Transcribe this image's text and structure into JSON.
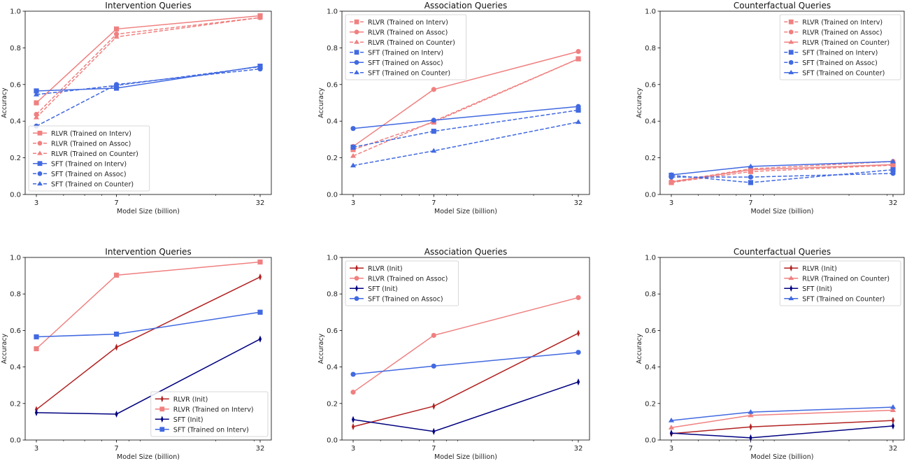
{
  "colors": {
    "rlvr_trained": "#f08080",
    "sft_trained": "#4169e1",
    "rlvr_init": "#b22222",
    "sft_init": "#000080"
  },
  "chart_data": [
    {
      "type": "line",
      "title": "Intervention Queries",
      "xlabel": "Model Size (billion)",
      "ylabel": "Accuracy",
      "x": [
        3,
        7,
        32
      ],
      "x_scale": "log",
      "ylim": [
        0,
        1
      ],
      "yticks": [
        "0.0",
        "0.2",
        "0.4",
        "0.6",
        "0.8",
        "1.0"
      ],
      "grid": false,
      "legend": "lower-left",
      "series": [
        {
          "name": "RLVR (Trained on Interv)",
          "values": [
            0.5,
            0.903,
            0.975
          ],
          "color": "#f08080",
          "marker": "square",
          "linestyle": "solid"
        },
        {
          "name": "RLVR (Trained on Assoc)",
          "values": [
            0.437,
            0.875,
            0.965
          ],
          "color": "#f08080",
          "marker": "circle",
          "linestyle": "dashed"
        },
        {
          "name": "RLVR (Trained on Counter)",
          "values": [
            0.42,
            0.86,
            0.965
          ],
          "color": "#f08080",
          "marker": "triangle",
          "linestyle": "dashed"
        },
        {
          "name": "SFT (Trained on Interv)",
          "values": [
            0.565,
            0.58,
            0.7
          ],
          "color": "#4169e1",
          "marker": "square",
          "linestyle": "solid"
        },
        {
          "name": "SFT (Trained on Assoc)",
          "values": [
            0.373,
            0.6,
            0.685
          ],
          "color": "#4169e1",
          "marker": "circle",
          "linestyle": "dashed"
        },
        {
          "name": "SFT (Trained on Counter)",
          "values": [
            0.545,
            0.595,
            0.697
          ],
          "color": "#4169e1",
          "marker": "triangle",
          "linestyle": "dashed"
        }
      ]
    },
    {
      "type": "line",
      "title": "Association Queries",
      "xlabel": "Model Size (billion)",
      "ylabel": "Accuracy",
      "x": [
        3,
        7,
        32
      ],
      "x_scale": "log",
      "ylim": [
        0,
        1
      ],
      "yticks": [
        "0.0",
        "0.2",
        "0.4",
        "0.6",
        "0.8",
        "1.0"
      ],
      "grid": false,
      "legend": "upper-left",
      "series": [
        {
          "name": "RLVR (Trained on Interv)",
          "values": [
            0.245,
            0.395,
            0.74
          ],
          "color": "#f08080",
          "marker": "square",
          "linestyle": "dashed"
        },
        {
          "name": "RLVR (Trained on Assoc)",
          "values": [
            0.262,
            0.573,
            0.78
          ],
          "color": "#f08080",
          "marker": "circle",
          "linestyle": "solid"
        },
        {
          "name": "RLVR (Trained on Counter)",
          "values": [
            0.21,
            0.4,
            0.74
          ],
          "color": "#f08080",
          "marker": "triangle",
          "linestyle": "dashed"
        },
        {
          "name": "SFT (Trained on Interv)",
          "values": [
            0.258,
            0.345,
            0.46
          ],
          "color": "#4169e1",
          "marker": "square",
          "linestyle": "dashed"
        },
        {
          "name": "SFT (Trained on Assoc)",
          "values": [
            0.36,
            0.405,
            0.48
          ],
          "color": "#4169e1",
          "marker": "circle",
          "linestyle": "solid"
        },
        {
          "name": "SFT (Trained on Counter)",
          "values": [
            0.158,
            0.238,
            0.395
          ],
          "color": "#4169e1",
          "marker": "triangle",
          "linestyle": "dashed"
        }
      ]
    },
    {
      "type": "line",
      "title": "Counterfactual Queries",
      "xlabel": "Model Size (billion)",
      "ylabel": "Accuracy",
      "x": [
        3,
        7,
        32
      ],
      "x_scale": "log",
      "ylim": [
        0,
        1
      ],
      "yticks": [
        "0.0",
        "0.2",
        "0.4",
        "0.6",
        "0.8",
        "1.0"
      ],
      "grid": false,
      "legend": "upper-right",
      "series": [
        {
          "name": "RLVR (Trained on Interv)",
          "values": [
            0.065,
            0.125,
            0.16
          ],
          "color": "#f08080",
          "marker": "square",
          "linestyle": "dashed"
        },
        {
          "name": "RLVR (Trained on Assoc)",
          "values": [
            0.07,
            0.14,
            0.18
          ],
          "color": "#f08080",
          "marker": "circle",
          "linestyle": "dashed"
        },
        {
          "name": "RLVR (Trained on Counter)",
          "values": [
            0.068,
            0.135,
            0.163
          ],
          "color": "#f08080",
          "marker": "triangle",
          "linestyle": "solid"
        },
        {
          "name": "SFT (Trained on Interv)",
          "values": [
            0.105,
            0.065,
            0.135
          ],
          "color": "#4169e1",
          "marker": "square",
          "linestyle": "dashed"
        },
        {
          "name": "SFT (Trained on Assoc)",
          "values": [
            0.095,
            0.095,
            0.115
          ],
          "color": "#4169e1",
          "marker": "circle",
          "linestyle": "dashed"
        },
        {
          "name": "SFT (Trained on Counter)",
          "values": [
            0.107,
            0.153,
            0.18
          ],
          "color": "#4169e1",
          "marker": "triangle",
          "linestyle": "solid"
        }
      ]
    },
    {
      "type": "line",
      "title": "Intervention Queries",
      "xlabel": "Model Size (billion)",
      "ylabel": "Accuracy",
      "x": [
        3,
        7,
        32
      ],
      "x_scale": "log",
      "ylim": [
        0,
        1
      ],
      "yticks": [
        "0.0",
        "0.2",
        "0.4",
        "0.6",
        "0.8",
        "1.0"
      ],
      "grid": false,
      "legend": "lower-right",
      "series": [
        {
          "name": "RLVR (Init)",
          "values": [
            0.167,
            0.508,
            0.893
          ],
          "color": "#b22222",
          "marker": "diamond",
          "linestyle": "solid"
        },
        {
          "name": "RLVR (Trained on Interv)",
          "values": [
            0.5,
            0.903,
            0.975
          ],
          "color": "#f08080",
          "marker": "square",
          "linestyle": "solid"
        },
        {
          "name": "SFT (Init)",
          "values": [
            0.15,
            0.142,
            0.553
          ],
          "color": "#000080",
          "marker": "diamond",
          "linestyle": "solid"
        },
        {
          "name": "SFT (Trained on Interv)",
          "values": [
            0.565,
            0.58,
            0.7
          ],
          "color": "#4169e1",
          "marker": "square",
          "linestyle": "solid"
        }
      ]
    },
    {
      "type": "line",
      "title": "Association Queries",
      "xlabel": "Model Size (billion)",
      "ylabel": "Accuracy",
      "x": [
        3,
        7,
        32
      ],
      "x_scale": "log",
      "ylim": [
        0,
        1
      ],
      "yticks": [
        "0.0",
        "0.2",
        "0.4",
        "0.6",
        "0.8",
        "1.0"
      ],
      "grid": false,
      "legend": "upper-left",
      "series": [
        {
          "name": "RLVR (Init)",
          "values": [
            0.073,
            0.185,
            0.585
          ],
          "color": "#b22222",
          "marker": "diamond",
          "linestyle": "solid"
        },
        {
          "name": "RLVR (Trained on Assoc)",
          "values": [
            0.262,
            0.573,
            0.78
          ],
          "color": "#f08080",
          "marker": "circle",
          "linestyle": "solid"
        },
        {
          "name": "SFT (Init)",
          "values": [
            0.112,
            0.047,
            0.318
          ],
          "color": "#000080",
          "marker": "diamond",
          "linestyle": "solid"
        },
        {
          "name": "SFT (Trained on Assoc)",
          "values": [
            0.36,
            0.405,
            0.48
          ],
          "color": "#4169e1",
          "marker": "circle",
          "linestyle": "solid"
        }
      ]
    },
    {
      "type": "line",
      "title": "Counterfactual Queries",
      "xlabel": "Model Size (billion)",
      "ylabel": "Accuracy",
      "x": [
        3,
        7,
        32
      ],
      "x_scale": "log",
      "ylim": [
        0,
        1
      ],
      "yticks": [
        "0.0",
        "0.2",
        "0.4",
        "0.6",
        "0.8",
        "1.0"
      ],
      "grid": false,
      "legend": "upper-right",
      "series": [
        {
          "name": "RLVR (Init)",
          "values": [
            0.035,
            0.072,
            0.107
          ],
          "color": "#b22222",
          "marker": "diamond",
          "linestyle": "solid"
        },
        {
          "name": "RLVR (Trained on Counter)",
          "values": [
            0.068,
            0.135,
            0.163
          ],
          "color": "#f08080",
          "marker": "triangle",
          "linestyle": "solid"
        },
        {
          "name": "SFT (Init)",
          "values": [
            0.038,
            0.012,
            0.077
          ],
          "color": "#000080",
          "marker": "diamond",
          "linestyle": "solid"
        },
        {
          "name": "SFT (Trained on Counter)",
          "values": [
            0.107,
            0.153,
            0.18
          ],
          "color": "#4169e1",
          "marker": "triangle",
          "linestyle": "solid"
        }
      ]
    }
  ]
}
